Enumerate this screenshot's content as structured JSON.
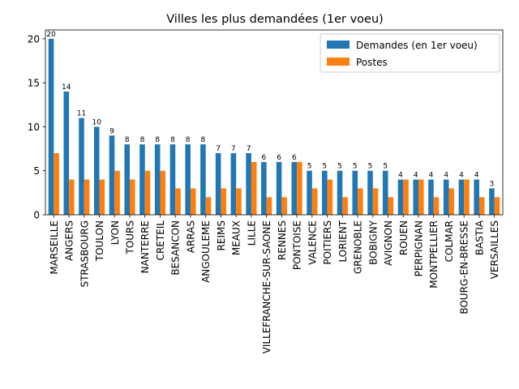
{
  "chart_data": {
    "type": "bar",
    "title": "Villes les plus demandées (1er voeu)",
    "xlabel": "",
    "ylabel": "",
    "ylim": [
      0,
      21
    ],
    "yticks": [
      0,
      5,
      10,
      15,
      20
    ],
    "grid": false,
    "legend_position": "top-right",
    "categories": [
      "MARSEILLE",
      "ANGERS",
      "STRASBOURG",
      "TOULON",
      "LYON",
      "TOURS",
      "NANTERRE",
      "CRETEIL",
      "BESANCON",
      "ARRAS",
      "ANGOULEME",
      "REIMS",
      "MEAUX",
      "LILLE",
      "VILLEFRANCHE-SUR-SAONE",
      "RENNES",
      "PONTOISE",
      "VALENCE",
      "POITIERS",
      "LORIENT",
      "GRENOBLE",
      "BOBIGNY",
      "AVIGNON",
      "ROUEN",
      "PERPIGNAN",
      "MONTPELLIER",
      "COLMAR",
      "BOURG-EN-BRESSE",
      "BASTIA",
      "VERSAILLES"
    ],
    "series": [
      {
        "name": "Demandes (en 1er voeu)",
        "color": "#1f77b4",
        "values": [
          20,
          14,
          11,
          10,
          9,
          8,
          8,
          8,
          8,
          8,
          8,
          7,
          7,
          7,
          6,
          6,
          6,
          5,
          5,
          5,
          5,
          5,
          5,
          4,
          4,
          4,
          4,
          4,
          4,
          3
        ],
        "show_labels": true
      },
      {
        "name": "Postes",
        "color": "#ff7f0e",
        "values": [
          7,
          4,
          4,
          4,
          5,
          4,
          5,
          5,
          3,
          3,
          2,
          3,
          3,
          6,
          2,
          2,
          6,
          3,
          4,
          2,
          3,
          3,
          2,
          4,
          4,
          2,
          3,
          4,
          2,
          2
        ],
        "show_labels": false
      }
    ]
  }
}
